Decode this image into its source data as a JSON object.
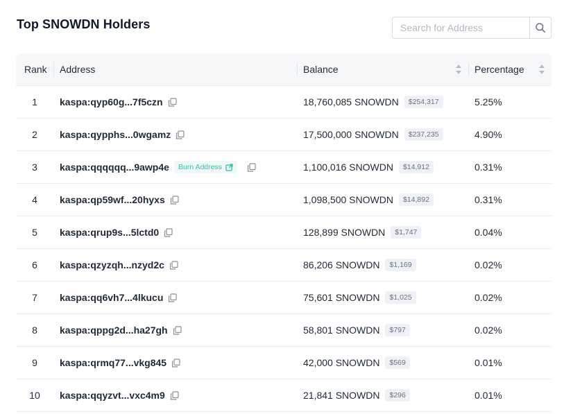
{
  "title": "Top SNOWDN Holders",
  "search": {
    "placeholder": "Search for Address",
    "value": ""
  },
  "table": {
    "columns": {
      "rank": "Rank",
      "address": "Address",
      "balance": "Balance",
      "percentage": "Percentage"
    },
    "rows": [
      {
        "rank": "1",
        "address": "kaspa:qyp60g...7f5czn",
        "balance": "18,760,085 SNOWDN",
        "usd": "$254,317",
        "percentage": "5.25%"
      },
      {
        "rank": "2",
        "address": "kaspa:qypphs...0wgamz",
        "balance": "17,500,000 SNOWDN",
        "usd": "$237,235",
        "percentage": "4.90%"
      },
      {
        "rank": "3",
        "address": "kaspa:qqqqqq...9awp4e",
        "badge": "Burn Address",
        "balance": "1,100,016 SNOWDN",
        "usd": "$14,912",
        "percentage": "0.31%"
      },
      {
        "rank": "4",
        "address": "kaspa:qp59wf...20hyxs",
        "balance": "1,098,500 SNOWDN",
        "usd": "$14,892",
        "percentage": "0.31%"
      },
      {
        "rank": "5",
        "address": "kaspa:qrup9s...5lctd0",
        "balance": "128,899 SNOWDN",
        "usd": "$1,747",
        "percentage": "0.04%"
      },
      {
        "rank": "6",
        "address": "kaspa:qzyzqh...nzyd2c",
        "balance": "86,206 SNOWDN",
        "usd": "$1,169",
        "percentage": "0.02%"
      },
      {
        "rank": "7",
        "address": "kaspa:qq6vh7...4lkucu",
        "balance": "75,601 SNOWDN",
        "usd": "$1,025",
        "percentage": "0.02%"
      },
      {
        "rank": "8",
        "address": "kaspa:qppg2d...ha27gh",
        "balance": "58,801 SNOWDN",
        "usd": "$797",
        "percentage": "0.02%"
      },
      {
        "rank": "9",
        "address": "kaspa:qrmq77...vkg845",
        "balance": "42,000 SNOWDN",
        "usd": "$569",
        "percentage": "0.01%"
      },
      {
        "rank": "10",
        "address": "kaspa:qqyzvt...vxc4m9",
        "balance": "21,841 SNOWDN",
        "usd": "$296",
        "percentage": "0.01%"
      }
    ]
  },
  "icons": {
    "search": "search-icon",
    "copy": "copy-icon",
    "external_link": "external-link-icon",
    "sort": "sort-icon"
  },
  "colors": {
    "badge_text": "#2fc1ab",
    "badge_bg": "#effaf8",
    "usd_bg": "#eef1f5"
  }
}
